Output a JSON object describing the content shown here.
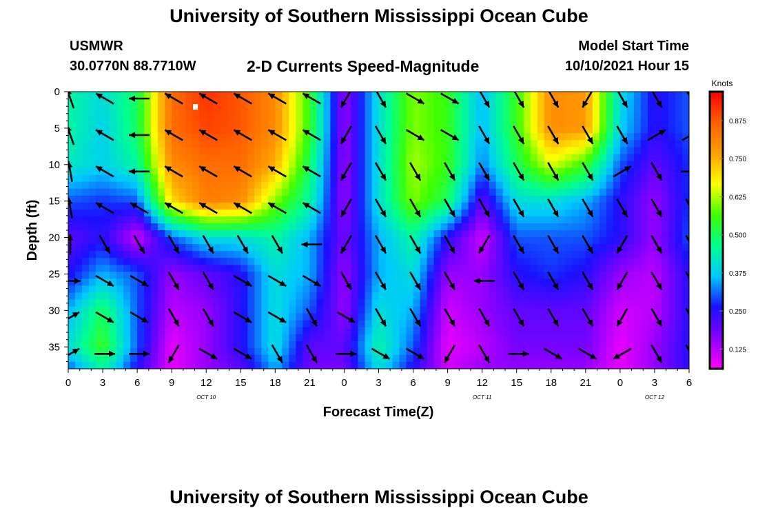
{
  "header": {
    "title": "University of Southern Mississippi Ocean Cube",
    "station": "USMWR",
    "coords": "30.0770N  88.7710W",
    "plot_title": "2-D Currents Speed-Magnitude",
    "model_label": "Model Start Time",
    "model_time": "10/10/2021 Hour 15"
  },
  "footer": {
    "title": "University of Southern Mississippi Ocean Cube"
  },
  "chart_data": {
    "type": "heatmap",
    "title": "2-D Currents Speed-Magnitude",
    "xlabel": "Forecast Time(Z)",
    "ylabel": "Depth (ft)",
    "x_tick_labels": [
      "0",
      "3",
      "6",
      "9",
      "12",
      "15",
      "18",
      "21",
      "0",
      "3",
      "6",
      "9",
      "12",
      "15",
      "18",
      "21",
      "0",
      "3",
      "6"
    ],
    "x_hours": [
      0,
      3,
      6,
      9,
      12,
      15,
      18,
      21,
      24,
      27,
      30,
      33,
      36,
      39,
      42,
      45,
      48,
      51,
      54
    ],
    "xlim": [
      0,
      54
    ],
    "date_labels": [
      {
        "text": "OCT  10",
        "hour": 12
      },
      {
        "text": "OCT  11",
        "hour": 36
      },
      {
        "text": "OCT  12",
        "hour": 51
      }
    ],
    "y_ticks": [
      0,
      5,
      10,
      15,
      20,
      25,
      30,
      35
    ],
    "ylim": [
      0,
      38
    ],
    "y_inverted": true,
    "legend": {
      "title": "Knots",
      "position": "right",
      "tick_labels": [
        "0.875",
        "0.750",
        "0.625",
        "0.500",
        "0.375",
        "0.250",
        "0.125"
      ],
      "tick_values": [
        0.875,
        0.75,
        0.625,
        0.5,
        0.375,
        0.25,
        0.125
      ],
      "range": [
        0.06,
        0.97
      ],
      "colors": [
        "#ff00ff",
        "#8a00ff",
        "#1a10ff",
        "#00c8ff",
        "#00ff90",
        "#40ff00",
        "#ffff00",
        "#ffa000",
        "#ff6000",
        "#ff0000"
      ]
    },
    "speed_grid": {
      "x_hours": [
        0,
        3,
        6,
        9,
        12,
        15,
        18,
        21,
        24,
        27,
        30,
        33,
        36,
        39,
        42,
        45,
        48,
        51,
        54
      ],
      "depths": [
        0,
        5,
        10,
        15,
        20,
        25,
        30,
        35,
        38
      ],
      "values": [
        [
          0.45,
          0.4,
          0.5,
          0.85,
          0.92,
          0.88,
          0.8,
          0.55,
          0.15,
          0.4,
          0.6,
          0.55,
          0.35,
          0.55,
          0.8,
          0.78,
          0.4,
          0.25,
          0.3
        ],
        [
          0.45,
          0.38,
          0.5,
          0.85,
          0.9,
          0.88,
          0.8,
          0.55,
          0.15,
          0.4,
          0.6,
          0.55,
          0.35,
          0.55,
          0.8,
          0.78,
          0.38,
          0.25,
          0.3
        ],
        [
          0.42,
          0.38,
          0.45,
          0.8,
          0.85,
          0.85,
          0.75,
          0.5,
          0.15,
          0.4,
          0.62,
          0.55,
          0.32,
          0.5,
          0.65,
          0.55,
          0.3,
          0.2,
          0.28
        ],
        [
          0.3,
          0.28,
          0.3,
          0.7,
          0.82,
          0.8,
          0.6,
          0.45,
          0.15,
          0.4,
          0.6,
          0.5,
          0.2,
          0.4,
          0.4,
          0.35,
          0.25,
          0.15,
          0.28
        ],
        [
          0.2,
          0.25,
          0.1,
          0.3,
          0.4,
          0.4,
          0.45,
          0.35,
          0.18,
          0.35,
          0.45,
          0.25,
          0.1,
          0.3,
          0.3,
          0.3,
          0.25,
          0.15,
          0.3
        ],
        [
          0.25,
          0.35,
          0.3,
          0.15,
          0.2,
          0.25,
          0.4,
          0.35,
          0.15,
          0.35,
          0.4,
          0.15,
          0.15,
          0.25,
          0.28,
          0.25,
          0.15,
          0.12,
          0.25
        ],
        [
          0.35,
          0.5,
          0.3,
          0.12,
          0.15,
          0.25,
          0.4,
          0.3,
          0.15,
          0.4,
          0.35,
          0.1,
          0.15,
          0.2,
          0.2,
          0.2,
          0.1,
          0.12,
          0.25
        ],
        [
          0.4,
          0.55,
          0.3,
          0.08,
          0.15,
          0.25,
          0.4,
          0.2,
          0.2,
          0.45,
          0.3,
          0.08,
          0.12,
          0.18,
          0.18,
          0.18,
          0.08,
          0.15,
          0.25
        ],
        [
          0.3,
          0.45,
          0.25,
          0.08,
          0.15,
          0.2,
          0.35,
          0.18,
          0.18,
          0.4,
          0.25,
          0.1,
          0.15,
          0.15,
          0.15,
          0.15,
          0.08,
          0.15,
          0.25
        ]
      ]
    },
    "vectors": {
      "x_hours": [
        0,
        3,
        6,
        9,
        12,
        15,
        18,
        21,
        24,
        27,
        30,
        33,
        36,
        39,
        42,
        45,
        48,
        51,
        54
      ],
      "depths": [
        0,
        5,
        10,
        15,
        20,
        25,
        30,
        35
      ],
      "direction_deg": [
        [
          340,
          300,
          270,
          300,
          300,
          300,
          300,
          300,
          210,
          150,
          120,
          120,
          150,
          150,
          150,
          210,
          150,
          150,
          150
        ],
        [
          340,
          300,
          270,
          300,
          300,
          300,
          300,
          300,
          210,
          150,
          120,
          120,
          150,
          150,
          150,
          150,
          150,
          60,
          60
        ],
        [
          350,
          300,
          270,
          300,
          300,
          300,
          300,
          300,
          210,
          150,
          150,
          150,
          150,
          150,
          150,
          150,
          60,
          150,
          90
        ],
        [
          350,
          300,
          300,
          300,
          300,
          300,
          300,
          300,
          210,
          150,
          150,
          150,
          150,
          150,
          150,
          150,
          150,
          150,
          150
        ],
        [
          0,
          150,
          150,
          150,
          150,
          150,
          150,
          270,
          210,
          150,
          150,
          150,
          210,
          150,
          150,
          150,
          210,
          150,
          150
        ],
        [
          90,
          120,
          120,
          150,
          150,
          120,
          120,
          120,
          150,
          150,
          150,
          150,
          270,
          150,
          150,
          150,
          210,
          150,
          150
        ],
        [
          60,
          120,
          120,
          150,
          150,
          120,
          120,
          150,
          120,
          150,
          150,
          150,
          150,
          150,
          150,
          150,
          210,
          150,
          150
        ],
        [
          60,
          90,
          90,
          210,
          120,
          120,
          150,
          150,
          90,
          120,
          120,
          210,
          150,
          90,
          120,
          120,
          240,
          150,
          150
        ]
      ]
    }
  }
}
